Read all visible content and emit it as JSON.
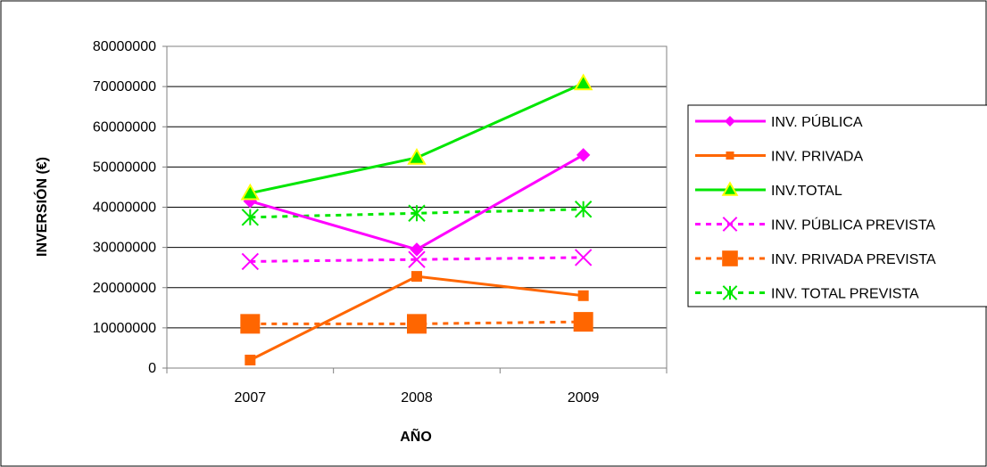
{
  "chart_data": {
    "type": "line",
    "xlabel": "AÑO",
    "ylabel": "INVERSIÓN (€)",
    "categories": [
      "2007",
      "2008",
      "2009"
    ],
    "ylim": [
      0,
      80000000
    ],
    "yticks": [
      "0",
      "10000000",
      "20000000",
      "30000000",
      "40000000",
      "50000000",
      "60000000",
      "70000000",
      "80000000"
    ],
    "grid": "horizontal",
    "legend_position": "right",
    "series": [
      {
        "name": "INV. PÚBLICA",
        "values": [
          41500000,
          29500000,
          53000000
        ],
        "color": "#ff00ff",
        "dash": "solid",
        "marker": "diamond"
      },
      {
        "name": "INV. PRIVADA",
        "values": [
          2000000,
          22800000,
          18000000
        ],
        "color": "#ff6600",
        "dash": "solid",
        "marker": "square"
      },
      {
        "name": "INV.TOTAL",
        "values": [
          43500000,
          52300000,
          70800000
        ],
        "color": "#00e600",
        "dash": "solid",
        "marker": "triangle"
      },
      {
        "name": "INV. PÚBLICA PREVISTA",
        "values": [
          26500000,
          27000000,
          27500000
        ],
        "color": "#ff00ff",
        "dash": "dashed",
        "marker": "x"
      },
      {
        "name": "INV. PRIVADA PREVISTA",
        "values": [
          11000000,
          11000000,
          11500000
        ],
        "color": "#ff6600",
        "dash": "dashed",
        "marker": "big-square"
      },
      {
        "name": "INV. TOTAL PREVISTA",
        "values": [
          37500000,
          38500000,
          39500000
        ],
        "color": "#00e600",
        "dash": "dashed",
        "marker": "asterisk"
      }
    ]
  }
}
